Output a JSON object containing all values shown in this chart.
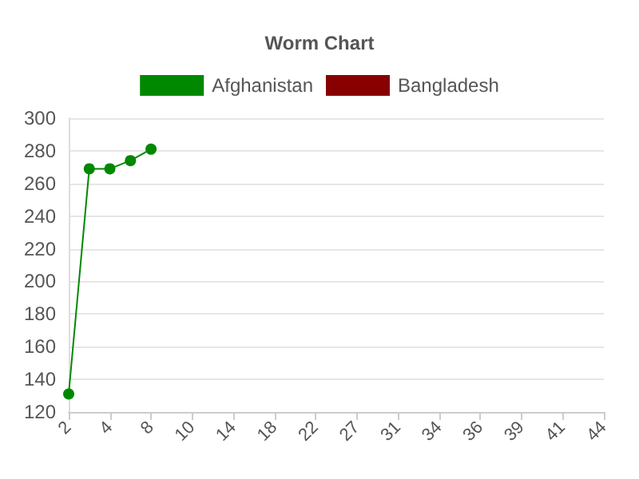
{
  "chart_data": {
    "type": "line",
    "title": "Worm Chart",
    "categories": [
      "2",
      null,
      "4",
      null,
      "8",
      null,
      "10",
      null,
      "14",
      null,
      "18",
      null,
      "22",
      null,
      "27",
      null,
      "31",
      null,
      "34",
      null,
      "36",
      null,
      "39",
      null,
      "41",
      null,
      "44"
    ],
    "series": [
      {
        "name": "Afghanistan",
        "color": "#008800",
        "values": [
          131,
          269,
          269,
          274,
          281,
          null,
          null,
          null,
          null,
          null,
          null,
          null,
          null,
          null,
          null,
          null,
          null,
          null,
          null,
          null,
          null,
          null,
          null,
          null,
          null,
          null,
          null
        ]
      },
      {
        "name": "Bangladesh",
        "color": "#880000",
        "values": [
          null,
          null,
          null,
          null,
          null,
          null,
          null,
          null,
          null,
          null,
          null,
          null,
          null,
          null,
          null,
          null,
          null,
          null,
          null,
          null,
          null,
          null,
          null,
          null,
          null,
          null,
          null
        ]
      }
    ],
    "ylim": [
      120,
      300
    ],
    "yticks": [
      120,
      140,
      160,
      180,
      200,
      220,
      240,
      260,
      280,
      300
    ],
    "grid": "y",
    "legend": "top",
    "marker": "circle"
  }
}
